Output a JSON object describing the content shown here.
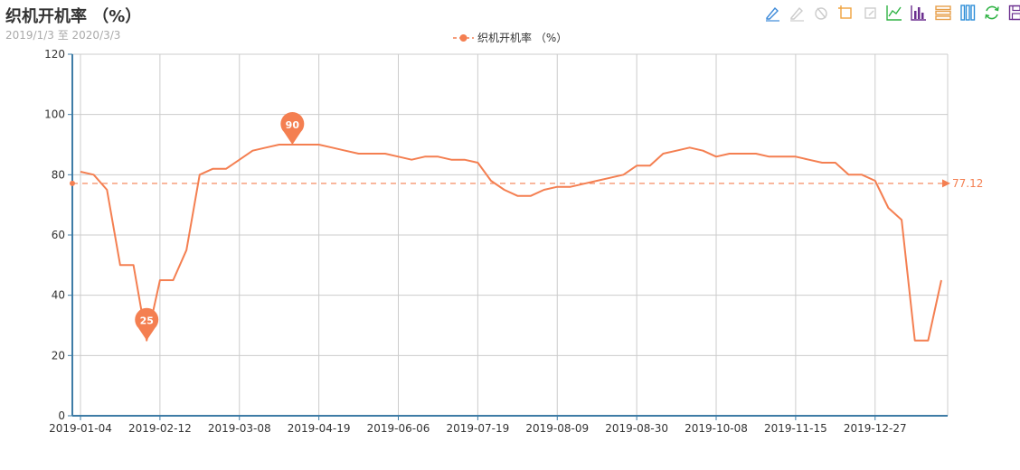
{
  "title": "织机开机率 （%）",
  "subtitle": "2019/1/3 至 2020/3/3",
  "toolbox": [
    {
      "name": "mark-pen-icon",
      "color": "#3d8ad9"
    },
    {
      "name": "mark-undo-icon",
      "color": "#cccccc"
    },
    {
      "name": "mark-clear-icon",
      "color": "#cccccc"
    },
    {
      "name": "data-zoom-icon",
      "color": "#f0a33e"
    },
    {
      "name": "data-zoom-reset-icon",
      "color": "#cccccc"
    },
    {
      "name": "line-chart-icon",
      "color": "#30b345"
    },
    {
      "name": "bar-chart-icon",
      "color": "#6b2f8f"
    },
    {
      "name": "stack-icon",
      "color": "#e79f4b"
    },
    {
      "name": "tiled-icon",
      "color": "#2f8fd8"
    },
    {
      "name": "restore-icon",
      "color": "#30b345"
    },
    {
      "name": "save-image-icon",
      "color": "#6b2f8f"
    }
  ],
  "chart_data": {
    "type": "line",
    "title": "",
    "xlabel": "",
    "ylabel": "",
    "ylim": [
      0,
      120
    ],
    "y_ticks": [
      0,
      20,
      40,
      60,
      80,
      100,
      120
    ],
    "x_tick_labels": [
      "2019-01-04",
      "2019-02-12",
      "2019-03-08",
      "2019-04-19",
      "2019-06-06",
      "2019-07-19",
      "2019-08-09",
      "2019-08-30",
      "2019-10-08",
      "2019-11-15",
      "2019-12-27"
    ],
    "x_tick_indices": [
      0,
      6,
      12,
      18,
      24,
      30,
      36,
      42,
      48,
      54,
      60
    ],
    "x_count": 66,
    "grid": true,
    "legend_position": "top-center",
    "color": "#f47f51",
    "series": [
      {
        "name": "织机开机率 （%）",
        "values": [
          81,
          80,
          75,
          50,
          50,
          25,
          45,
          45,
          55,
          80,
          82,
          82,
          85,
          88,
          89,
          90,
          90,
          90,
          90,
          89,
          88,
          87,
          87,
          87,
          86,
          85,
          86,
          86,
          85,
          85,
          84,
          78,
          75,
          73,
          73,
          75,
          76,
          76,
          77,
          78,
          79,
          80,
          83,
          83,
          87,
          88,
          89,
          88,
          86,
          87,
          87,
          87,
          86,
          86,
          86,
          85,
          84,
          84,
          80,
          80,
          78,
          69,
          65,
          25,
          25,
          45
        ]
      }
    ],
    "mark_points": [
      {
        "label": "90",
        "index": 16,
        "value": 90
      },
      {
        "label": "25",
        "index": 5,
        "value": 25
      }
    ],
    "mark_line": {
      "label": "77.12",
      "value": 77.12
    }
  }
}
